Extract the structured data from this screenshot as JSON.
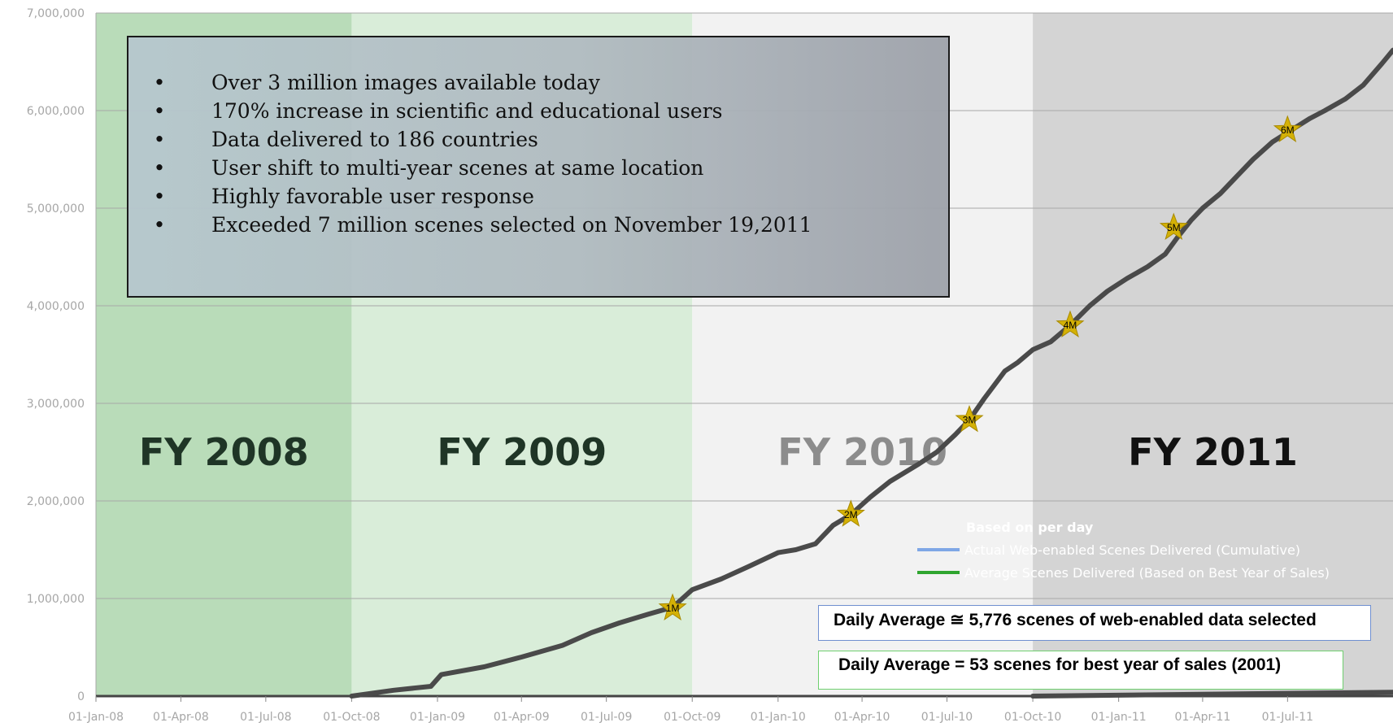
{
  "chart_data": {
    "type": "line",
    "title": "",
    "xlabel": "",
    "ylabel": "",
    "ylim": [
      0,
      7000000
    ],
    "xlim": [
      "2008-01-01",
      "2011-10-22"
    ],
    "y_ticks": [
      0,
      1000000,
      2000000,
      3000000,
      4000000,
      5000000,
      6000000,
      7000000
    ],
    "y_tick_labels": [
      "0",
      "1,000,000",
      "2,000,000",
      "3,000,000",
      "4,000,000",
      "5,000,000",
      "6,000,000",
      "7,000,000"
    ],
    "x_ticks": [
      "2008-01-01",
      "2008-04-01",
      "2008-07-01",
      "2008-10-01",
      "2009-01-01",
      "2009-04-01",
      "2009-07-01",
      "2009-10-01",
      "2010-01-01",
      "2010-04-01",
      "2010-07-01",
      "2010-10-01",
      "2011-01-01",
      "2011-04-01",
      "2011-07-01"
    ],
    "x_tick_labels": [
      "01-Jan-08",
      "01-Apr-08",
      "01-Jul-08",
      "01-Oct-08",
      "01-Jan-09",
      "01-Apr-09",
      "01-Jul-09",
      "01-Oct-09",
      "01-Jan-10",
      "01-Apr-10",
      "01-Jul-10",
      "01-Oct-10",
      "01-Jan-11",
      "01-Apr-11",
      "01-Jul-11"
    ],
    "grid": true,
    "fiscal_years": [
      {
        "label": "FY 2008",
        "start": "2008-01-01",
        "end": "2008-10-01",
        "color": "#b9dcb9",
        "text_color": "#1f3526"
      },
      {
        "label": "FY 2009",
        "start": "2008-10-01",
        "end": "2009-10-01",
        "color": "#d9edd9",
        "text_color": "#1f3526"
      },
      {
        "label": "FY 2010",
        "start": "2009-10-01",
        "end": "2010-10-01",
        "color": "#f2f2f2",
        "text_color": "#8c8c8c"
      },
      {
        "label": "FY 2011",
        "start": "2010-10-01",
        "end": "2011-10-22",
        "color": "#d4d4d4",
        "text_color": "#111111"
      }
    ],
    "series": [
      {
        "color": "#4a4a4a",
        "points": [
          [
            "2008-10-01",
            0
          ],
          [
            "2008-11-15",
            60000
          ],
          [
            "2008-12-25",
            100000
          ],
          [
            "2009-01-05",
            220000
          ],
          [
            "2009-02-20",
            300000
          ],
          [
            "2009-04-01",
            400000
          ],
          [
            "2009-05-15",
            520000
          ],
          [
            "2009-06-15",
            650000
          ],
          [
            "2009-07-15",
            750000
          ],
          [
            "2009-08-15",
            840000
          ],
          [
            "2009-09-10",
            910000
          ],
          [
            "2009-10-01",
            1090000
          ],
          [
            "2009-11-01",
            1200000
          ],
          [
            "2009-12-01",
            1330000
          ],
          [
            "2010-01-01",
            1470000
          ],
          [
            "2010-01-20",
            1500000
          ],
          [
            "2010-02-10",
            1560000
          ],
          [
            "2010-03-01",
            1750000
          ],
          [
            "2010-03-20",
            1860000
          ],
          [
            "2010-04-10",
            2040000
          ],
          [
            "2010-05-01",
            2200000
          ],
          [
            "2010-06-01",
            2380000
          ],
          [
            "2010-06-20",
            2500000
          ],
          [
            "2010-07-10",
            2680000
          ],
          [
            "2010-07-25",
            2830000
          ],
          [
            "2010-08-10",
            3050000
          ],
          [
            "2010-09-01",
            3330000
          ],
          [
            "2010-09-15",
            3420000
          ],
          [
            "2010-10-01",
            3550000
          ],
          [
            "2010-10-20",
            3630000
          ],
          [
            "2010-11-10",
            3800000
          ],
          [
            "2010-12-01",
            4000000
          ],
          [
            "2010-12-20",
            4150000
          ],
          [
            "2011-01-10",
            4280000
          ],
          [
            "2011-02-01",
            4400000
          ],
          [
            "2011-02-20",
            4530000
          ],
          [
            "2011-03-05",
            4700000
          ],
          [
            "2011-03-20",
            4880000
          ],
          [
            "2011-04-01",
            5000000
          ],
          [
            "2011-04-20",
            5150000
          ],
          [
            "2011-05-05",
            5300000
          ],
          [
            "2011-05-25",
            5500000
          ],
          [
            "2011-06-15",
            5680000
          ],
          [
            "2011-07-05",
            5800000
          ],
          [
            "2011-07-25",
            5920000
          ],
          [
            "2011-08-10",
            6000000
          ],
          [
            "2011-09-01",
            6120000
          ],
          [
            "2011-09-20",
            6260000
          ],
          [
            "2011-10-10",
            6480000
          ],
          [
            "2011-10-22",
            6620000
          ]
        ]
      },
      {
        "color": "#4a4a4a",
        "points": [
          [
            "2010-10-01",
            0
          ],
          [
            "2011-10-22",
            40000
          ]
        ]
      }
    ],
    "milestones": [
      {
        "label": "1M",
        "date": "2009-09-10",
        "value": 900000
      },
      {
        "label": "2M",
        "date": "2010-03-20",
        "value": 1860000
      },
      {
        "label": "3M",
        "date": "2010-07-25",
        "value": 2830000
      },
      {
        "label": "4M",
        "date": "2010-11-10",
        "value": 3800000
      },
      {
        "label": "5M",
        "date": "2011-03-01",
        "value": 4800000
      },
      {
        "label": "6M",
        "date": "2011-07-01",
        "value": 5800000
      }
    ],
    "legend": {
      "position": "bottom-right",
      "title": "Based on per day",
      "entries": [
        {
          "label": "Actual Web-enabled Scenes Delivered (Cumulative)",
          "color": "#7fa7e6"
        },
        {
          "label": "Average Scenes Delivered (Based on Best Year of Sales)",
          "color": "#2fa52f"
        }
      ]
    }
  },
  "annotations": {
    "bullets": [
      "Over 3 million images available today",
      "170% increase in scientific and educational users",
      "Data delivered to 186 countries",
      "User shift to multi-year scenes at same location",
      "Highly favorable user response",
      "Exceeded 7 million scenes selected on November 19,2011"
    ],
    "bullet_symbol": "•",
    "daily_average_web": "Daily Average ≅ 5,776 scenes of web-enabled data selected",
    "daily_average_best_year": "Daily Average = 53 scenes for best year of sales (2001)"
  }
}
